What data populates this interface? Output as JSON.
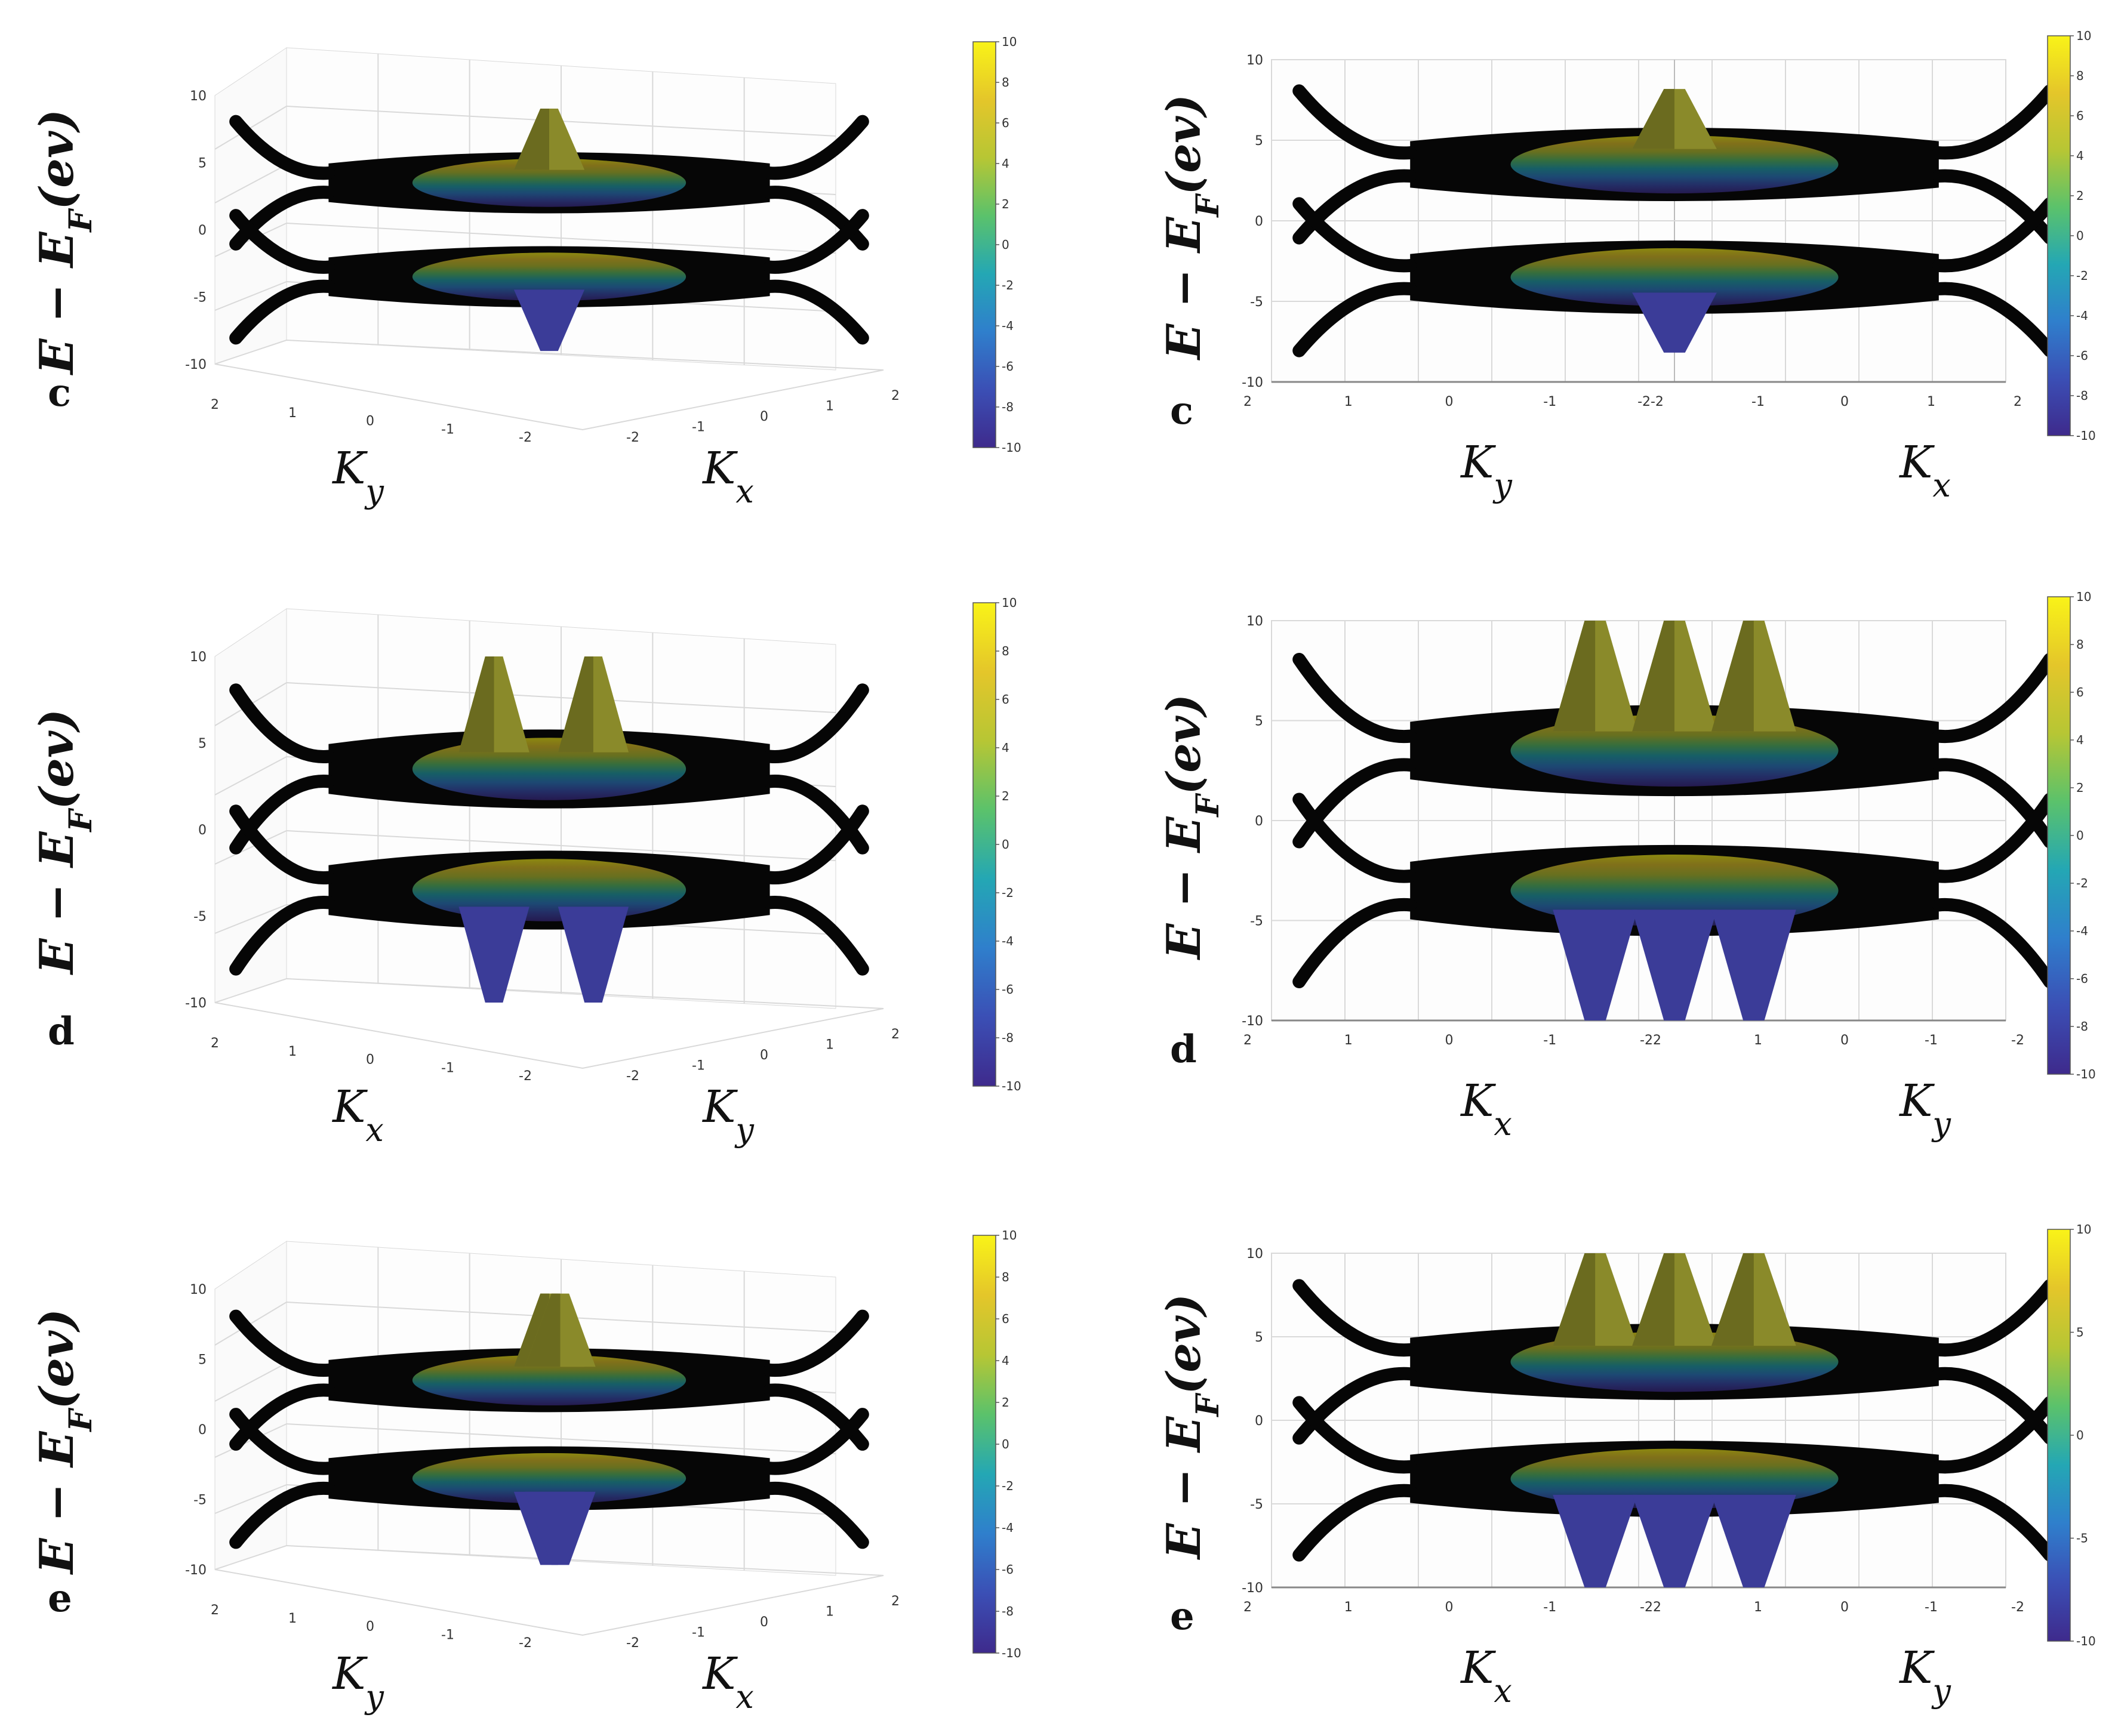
{
  "colors": {
    "colormap": [
      "#3e2a8c",
      "#3b4fb5",
      "#2f7fcc",
      "#24a7b4",
      "#5bc26b",
      "#b7c634",
      "#e4c62a",
      "#f9f318"
    ],
    "surface_dark": "#060606",
    "grid": "#d9d9d9",
    "axis": "#444444"
  },
  "chart_data": [
    {
      "type": "surface3d",
      "panel_label": "c",
      "view": "oblique",
      "ylabel": "E − E",
      "ylabel_sub": "F",
      "ylabel_tail": "(ev)",
      "axis1_label": "K",
      "axis1_sub": "y",
      "axis2_label": "K",
      "axis2_sub": "x",
      "zlim": [
        -10,
        10
      ],
      "z_ticks": [
        "10",
        "5",
        "0",
        "-5",
        "-10"
      ],
      "axis1_ticks": [
        "2",
        "1",
        "0",
        "-1",
        "-2"
      ],
      "axis2_ticks": [
        "-2",
        "-1",
        "0",
        "1",
        "2"
      ],
      "colorbar_ticks": [
        "10",
        "8",
        "6",
        "4",
        "2",
        "0",
        "-2",
        "-4",
        "-6",
        "-8",
        "-10"
      ],
      "peaks": [
        0
      ],
      "peak_height": 0.85
    },
    {
      "type": "surface3d",
      "panel_label": "c",
      "view": "side",
      "ylabel": "E − E",
      "ylabel_sub": "F",
      "ylabel_tail": "(ev)",
      "axis1_label": "K",
      "axis1_sub": "y",
      "axis2_label": "K",
      "axis2_sub": "x",
      "zlim": [
        -10,
        10
      ],
      "z_ticks": [
        "10",
        "5",
        "0",
        "-5",
        "-10"
      ],
      "axis1_ticks": [
        "2",
        "1",
        "0",
        "-1",
        "-2-2"
      ],
      "axis2_ticks": [
        "-1",
        "0",
        "1",
        "2"
      ],
      "colorbar_ticks": [
        "10",
        "8",
        "6",
        "4",
        "2",
        "0",
        "-2",
        "-4",
        "-6",
        "-8",
        "-10"
      ],
      "peaks": [
        0
      ],
      "peak_height": 0.72
    },
    {
      "type": "surface3d",
      "panel_label": "d",
      "view": "oblique",
      "ylabel": "E − E",
      "ylabel_sub": "F",
      "ylabel_tail": "(ev)",
      "axis1_label": "K",
      "axis1_sub": "x",
      "axis2_label": "K",
      "axis2_sub": "y",
      "zlim": [
        -10,
        10
      ],
      "z_ticks": [
        "10",
        "5",
        "0",
        "-5",
        "-10"
      ],
      "axis1_ticks": [
        "2",
        "1",
        "0",
        "-1",
        "-2"
      ],
      "axis2_ticks": [
        "-2",
        "-1",
        "0",
        "1",
        "2"
      ],
      "colorbar_ticks": [
        "10",
        "8",
        "6",
        "4",
        "2",
        "0",
        "-2",
        "-4",
        "-6",
        "-8",
        "-10"
      ],
      "peaks": [
        -0.25,
        0.2
      ],
      "peak_height": 1.0
    },
    {
      "type": "surface3d",
      "panel_label": "d",
      "view": "side",
      "ylabel": "E − E",
      "ylabel_sub": "F",
      "ylabel_tail": "(ev)",
      "axis1_label": "K",
      "axis1_sub": "x",
      "axis2_label": "K",
      "axis2_sub": "y",
      "zlim": [
        -10,
        10
      ],
      "z_ticks": [
        "10",
        "5",
        "0",
        "-5",
        "-10"
      ],
      "axis1_ticks": [
        "2",
        "1",
        "0",
        "-1",
        "-22"
      ],
      "axis2_ticks": [
        "1",
        "0",
        "-1",
        "-2"
      ],
      "colorbar_ticks": [
        "10",
        "8",
        "6",
        "4",
        "2",
        "0",
        "-2",
        "-4",
        "-6",
        "-8",
        "-10"
      ],
      "peaks": [
        -0.3,
        0,
        0.3
      ],
      "peak_height": 1.0
    },
    {
      "type": "surface3d",
      "panel_label": "e",
      "view": "oblique",
      "ylabel": "E − E",
      "ylabel_sub": "F",
      "ylabel_tail": "(ev)",
      "axis1_label": "K",
      "axis1_sub": "y",
      "axis2_label": "K",
      "axis2_sub": "x",
      "zlim": [
        -10,
        10
      ],
      "z_ticks": [
        "10",
        "5",
        "0",
        "-5",
        "-10"
      ],
      "axis1_ticks": [
        "2",
        "1",
        "0",
        "-1",
        "-2"
      ],
      "axis2_ticks": [
        "-2",
        "-1",
        "0",
        "1",
        "2"
      ],
      "colorbar_ticks": [
        "10",
        "8",
        "6",
        "4",
        "2",
        "0",
        "-2",
        "-4",
        "-6",
        "-8",
        "-10"
      ],
      "peaks": [
        0,
        0.05
      ],
      "peak_height": 0.95
    },
    {
      "type": "surface3d",
      "panel_label": "e",
      "view": "side",
      "ylabel": "E − E",
      "ylabel_sub": "F",
      "ylabel_tail": "(ev)",
      "axis1_label": "K",
      "axis1_sub": "x",
      "axis2_label": "K",
      "axis2_sub": "y",
      "zlim": [
        -10,
        10
      ],
      "z_ticks": [
        "10",
        "5",
        "0",
        "-5",
        "-10"
      ],
      "axis1_ticks": [
        "2",
        "1",
        "0",
        "-1",
        "-22"
      ],
      "axis2_ticks": [
        "1",
        "0",
        "-1",
        "-2"
      ],
      "colorbar_ticks": [
        "10",
        "5",
        "0",
        "-5",
        "-10"
      ],
      "peaks": [
        -0.3,
        0,
        0.3
      ],
      "peak_height": 1.0
    }
  ]
}
